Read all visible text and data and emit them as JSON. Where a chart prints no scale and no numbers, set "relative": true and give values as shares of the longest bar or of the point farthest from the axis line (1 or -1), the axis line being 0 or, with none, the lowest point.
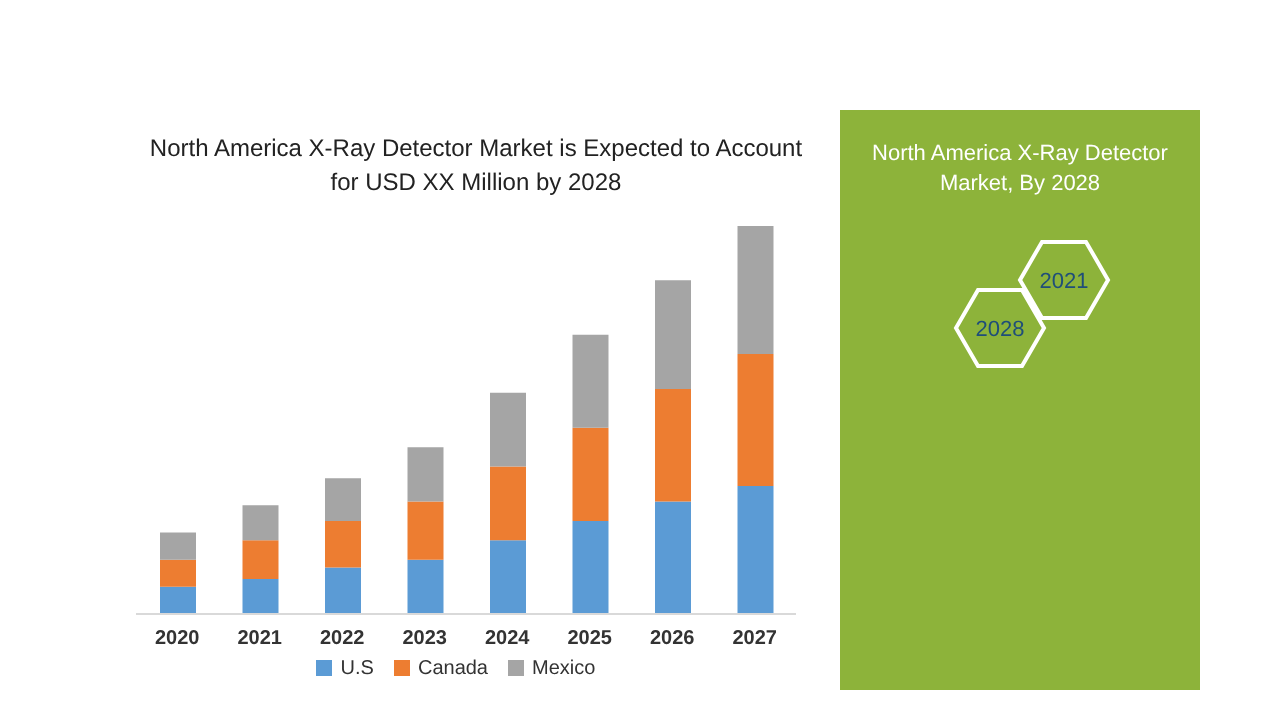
{
  "chart_data": {
    "type": "bar",
    "title": "North America X-Ray Detector Market is Expected to Account for USD XX Million by 2028",
    "categories": [
      "2020",
      "2021",
      "2022",
      "2023",
      "2024",
      "2025",
      "2026",
      "2027"
    ],
    "stacked": true,
    "relative": true,
    "legend": "bottom",
    "grid": false,
    "series": [
      {
        "name": "U.S",
        "color": "#5b9bd5",
        "values": [
          0.07,
          0.09,
          0.12,
          0.14,
          0.19,
          0.24,
          0.29,
          0.33
        ]
      },
      {
        "name": "Canada",
        "color": "#ed7d31",
        "values": [
          0.07,
          0.1,
          0.12,
          0.15,
          0.19,
          0.24,
          0.29,
          0.34
        ]
      },
      {
        "name": "Mexico",
        "color": "#a5a5a5",
        "values": [
          0.07,
          0.09,
          0.11,
          0.14,
          0.19,
          0.24,
          0.28,
          0.33
        ]
      }
    ],
    "annotations": [
      "North America X-Ray Detector Market, By 2028",
      "2021",
      "2028"
    ]
  }
}
